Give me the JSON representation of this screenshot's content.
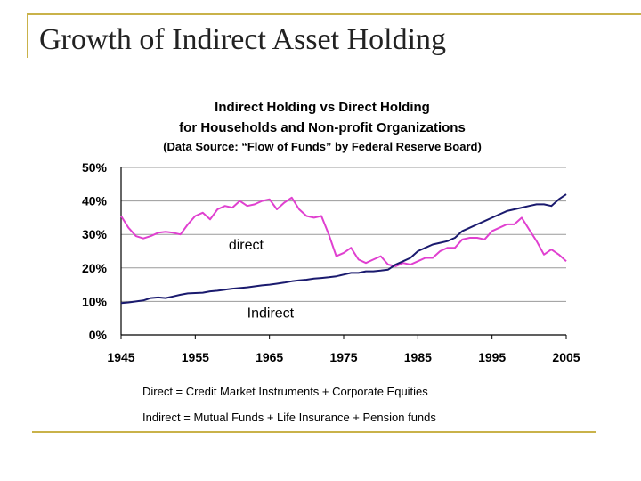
{
  "slide": {
    "title": "Growth of Indirect Asset Holding",
    "footnote_direct": "Direct = Credit Market Instruments + Corporate Equities",
    "footnote_indirect": "Indirect = Mutual Funds + Life Insurance + Pension funds"
  },
  "colors": {
    "direct": "#e040d0",
    "indirect": "#1a1a6e",
    "rule": "#c9b24a"
  },
  "chart_data": {
    "type": "line",
    "title": [
      "Indirect Holding vs Direct Holding",
      "for Households and Non-profit Organizations",
      "(Data Source: “Flow of Funds” by Federal Reserve Board)"
    ],
    "xlim": [
      1945,
      2005
    ],
    "ylim": [
      0,
      50
    ],
    "x_ticks": [
      1945,
      1955,
      1965,
      1975,
      1985,
      1995,
      2005
    ],
    "x_tick_labels": [
      "1945",
      "1955",
      "1965",
      "1975",
      "1985",
      "1995",
      "2005"
    ],
    "y_ticks": [
      0,
      10,
      20,
      30,
      40,
      50
    ],
    "y_tick_labels": [
      "0%",
      "10%",
      "20%",
      "30%",
      "40%",
      "50%"
    ],
    "grid": "horizontal",
    "annotations": [
      {
        "text": "direct",
        "x": 1959.5,
        "y": 25.5
      },
      {
        "text": "Indirect",
        "x": 1962,
        "y": 5.2
      }
    ],
    "series": [
      {
        "id": "direct",
        "x": [
          1945,
          1946,
          1947,
          1948,
          1949,
          1950,
          1951,
          1952,
          1953,
          1954,
          1955,
          1956,
          1957,
          1958,
          1959,
          1960,
          1961,
          1962,
          1963,
          1964,
          1965,
          1966,
          1967,
          1968,
          1969,
          1970,
          1971,
          1972,
          1973,
          1974,
          1975,
          1976,
          1977,
          1978,
          1979,
          1980,
          1981,
          1982,
          1983,
          1984,
          1985,
          1986,
          1987,
          1988,
          1989,
          1990,
          1991,
          1992,
          1993,
          1994,
          1995,
          1996,
          1997,
          1998,
          1999,
          2000,
          2001,
          2002,
          2003,
          2004,
          2005
        ],
        "values": [
          35.5,
          32,
          29.5,
          28.8,
          29.5,
          30.5,
          30.8,
          30.5,
          30,
          33,
          35.5,
          36.5,
          34.5,
          37.5,
          38.5,
          38,
          40,
          38.5,
          39,
          40,
          40.5,
          37.5,
          39.5,
          41,
          37.5,
          35.5,
          35,
          35.5,
          30,
          23.5,
          24.5,
          26,
          22.5,
          21.5,
          22.5,
          23.5,
          21,
          20.5,
          21.5,
          21,
          22,
          23,
          23,
          25,
          26,
          26,
          28.5,
          29,
          29,
          28.5,
          31,
          32,
          33,
          33,
          35,
          31.5,
          28,
          24,
          25.5,
          24,
          22
        ]
      },
      {
        "id": "indirect",
        "x": [
          1945,
          1946,
          1947,
          1948,
          1949,
          1950,
          1951,
          1952,
          1953,
          1954,
          1955,
          1956,
          1957,
          1958,
          1959,
          1960,
          1961,
          1962,
          1963,
          1964,
          1965,
          1966,
          1967,
          1968,
          1969,
          1970,
          1971,
          1972,
          1973,
          1974,
          1975,
          1976,
          1977,
          1978,
          1979,
          1980,
          1981,
          1982,
          1983,
          1984,
          1985,
          1986,
          1987,
          1988,
          1989,
          1990,
          1991,
          1992,
          1993,
          1994,
          1995,
          1996,
          1997,
          1998,
          1999,
          2000,
          2001,
          2002,
          2003,
          2004,
          2005
        ],
        "values": [
          9.5,
          9.7,
          10,
          10.3,
          11,
          11.2,
          11,
          11.5,
          12,
          12.4,
          12.5,
          12.6,
          13,
          13.2,
          13.5,
          13.8,
          14,
          14.2,
          14.5,
          14.8,
          15,
          15.3,
          15.6,
          16,
          16.3,
          16.5,
          16.8,
          17,
          17.2,
          17.5,
          18,
          18.5,
          18.5,
          19,
          19,
          19.2,
          19.5,
          21,
          22,
          23,
          25,
          26,
          27,
          27.5,
          28,
          29,
          31,
          32,
          33,
          34,
          35,
          36,
          37,
          37.5,
          38,
          38.5,
          39,
          39,
          38.5,
          40.5,
          42
        ]
      }
    ]
  }
}
